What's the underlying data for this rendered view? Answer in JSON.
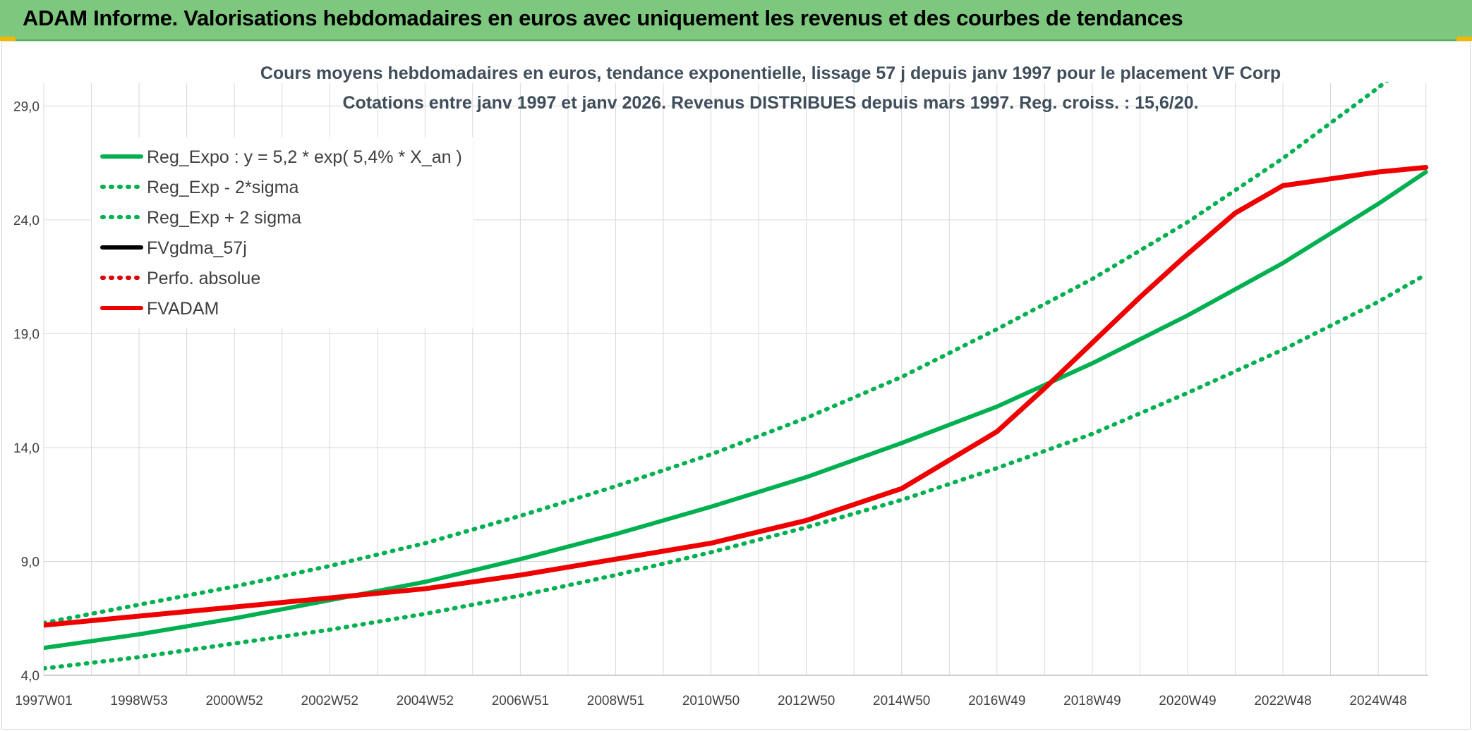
{
  "header": {
    "title": "ADAM Informe. Valorisations hebdomadaires en euros avec uniquement les revenus et des courbes de tendances",
    "background": "#7dc87e"
  },
  "chart_data": {
    "type": "line",
    "title": "Cours moyens hebdomadaires en euros, tendance exponentielle, lissage 57 j depuis janv 1997 pour le placement VF Corp",
    "subtitle": "Cotations entre janv 1997 et janv 2026. Revenus DISTRIBUES depuis mars 1997. Reg. croiss. : 15,6/20.",
    "xlabel": "",
    "ylabel": "",
    "ylim": [
      4,
      30
    ],
    "xlim": [
      1997.0,
      2026.05
    ],
    "y_ticks": [
      "4,0",
      "9,0",
      "14,0",
      "19,0",
      "24,0",
      "29,0"
    ],
    "y_tick_values": [
      4,
      9,
      14,
      19,
      24,
      29
    ],
    "x_ticks": [
      "1997W01",
      "1998W53",
      "2000W52",
      "2002W52",
      "2004W52",
      "2006W51",
      "2008W51",
      "2010W50",
      "2012W50",
      "2014W50",
      "2016W49",
      "2018W49",
      "2020W49",
      "2022W48",
      "2024W48"
    ],
    "x_tick_years": [
      1997.0,
      1999.0,
      2001.0,
      2003.0,
      2005.0,
      2007.0,
      2009.0,
      2011.0,
      2013.0,
      2015.0,
      2017.0,
      2019.0,
      2021.0,
      2023.0,
      2025.0
    ],
    "grid": true,
    "legend_position": "top-left",
    "series": [
      {
        "name": "Reg_Expo : y = 5,2 * exp( 5,4% *  X_an )",
        "color": "#00b050",
        "style": "solid",
        "x": [
          1997,
          1999,
          2001,
          2003,
          2005,
          2007,
          2009,
          2011,
          2013,
          2015,
          2017,
          2019,
          2021,
          2023,
          2025,
          2026
        ],
        "values": [
          5.2,
          5.8,
          6.5,
          7.3,
          8.1,
          9.1,
          10.2,
          11.4,
          12.7,
          14.2,
          15.8,
          17.7,
          19.8,
          22.1,
          24.7,
          26.1
        ]
      },
      {
        "name": "Reg_Exp - 2*sigma",
        "color": "#00b050",
        "style": "dotted",
        "x": [
          1997,
          1999,
          2001,
          2003,
          2005,
          2007,
          2009,
          2011,
          2013,
          2015,
          2017,
          2019,
          2021,
          2023,
          2025,
          2026
        ],
        "values": [
          4.3,
          4.8,
          5.4,
          6.0,
          6.7,
          7.5,
          8.4,
          9.4,
          10.5,
          11.7,
          13.1,
          14.6,
          16.4,
          18.3,
          20.4,
          21.6
        ]
      },
      {
        "name": "Reg_Exp + 2 sigma",
        "color": "#00b050",
        "style": "dotted",
        "x": [
          1997,
          1999,
          2001,
          2003,
          2005,
          2007,
          2009,
          2011,
          2013,
          2015,
          2017,
          2019,
          2021,
          2023,
          2025,
          2026
        ],
        "values": [
          6.3,
          7.1,
          7.9,
          8.8,
          9.8,
          11.0,
          12.3,
          13.7,
          15.3,
          17.1,
          19.2,
          21.4,
          23.9,
          26.7,
          29.8,
          31.5
        ]
      },
      {
        "name": "FVgdma_57j",
        "color": "#000000",
        "style": "solid",
        "x": [],
        "values": []
      },
      {
        "name": "Perfo. absolue",
        "color": "#e00000",
        "style": "dotted",
        "x": [],
        "values": []
      },
      {
        "name": "FVADAM",
        "color": "#ee0000",
        "style": "solid",
        "x": [
          1997,
          1999,
          2001,
          2003,
          2005,
          2007,
          2009,
          2011,
          2013,
          2015,
          2017,
          2018,
          2019,
          2020,
          2021,
          2022,
          2023,
          2024,
          2025,
          2026
        ],
        "values": [
          6.2,
          6.6,
          7.0,
          7.4,
          7.8,
          8.4,
          9.1,
          9.8,
          10.8,
          12.2,
          14.7,
          16.6,
          18.6,
          20.6,
          22.5,
          24.3,
          25.5,
          25.8,
          26.1,
          26.3
        ]
      }
    ]
  }
}
